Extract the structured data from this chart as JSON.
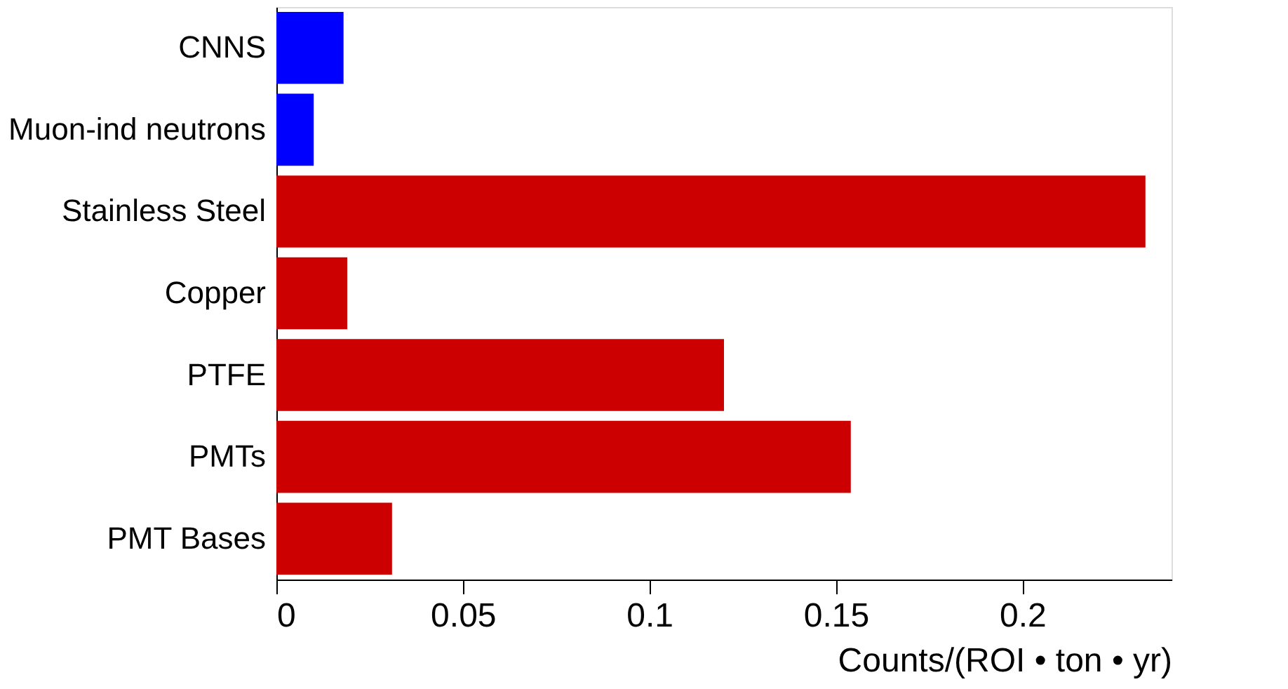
{
  "chart_data": {
    "type": "bar",
    "orientation": "horizontal",
    "xlabel": "Counts/(ROI • ton • yr)",
    "categories": [
      "CNNS",
      "Muon-ind neutrons",
      "Stainless Steel",
      "Copper",
      "PTFE",
      "PMTs",
      "PMT Bases"
    ],
    "values": [
      0.018,
      0.01,
      0.233,
      0.019,
      0.12,
      0.154,
      0.031
    ],
    "colors": [
      "#0000ff",
      "#0000ff",
      "#cc0000",
      "#cc0000",
      "#cc0000",
      "#cc0000",
      "#cc0000"
    ],
    "xlim": [
      0,
      0.24
    ],
    "xticks": [
      0,
      0.05,
      0.1,
      0.15,
      0.2
    ],
    "grid": false
  }
}
